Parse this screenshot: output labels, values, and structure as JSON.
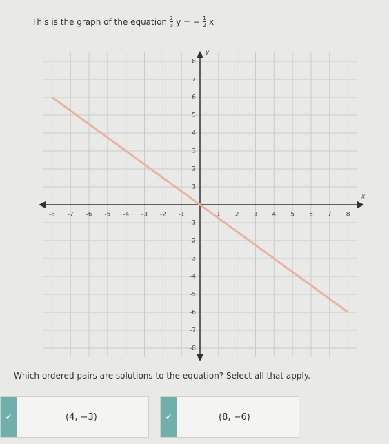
{
  "header": {
    "text": "This is the graph of the equation",
    "equation": [
      "2",
      "3",
      "y = −",
      "1",
      "2",
      "x"
    ]
  },
  "graph": {
    "type": "line",
    "x": [
      -8,
      8
    ],
    "values": [
      6,
      -6
    ],
    "xlim": [
      -8.5,
      8.5
    ],
    "ylim": [
      -8.5,
      8.5
    ],
    "xticks": [
      -8,
      -7,
      -6,
      -5,
      -4,
      -3,
      -2,
      -1,
      1,
      2,
      3,
      4,
      5,
      6,
      7,
      8
    ],
    "yticks": [
      -8,
      -7,
      -6,
      -5,
      -4,
      -3,
      -2,
      -1,
      1,
      2,
      3,
      4,
      5,
      6,
      7,
      8
    ],
    "x_label": "x",
    "y_label": "y",
    "color": "#e6b3a6",
    "grid": true
  },
  "question": "Which ordered pairs are solutions to the equation? Select all that apply.",
  "options": [
    {
      "label": "(4, −3)",
      "checked": true
    },
    {
      "label": "(8, −6)",
      "checked": true
    }
  ]
}
